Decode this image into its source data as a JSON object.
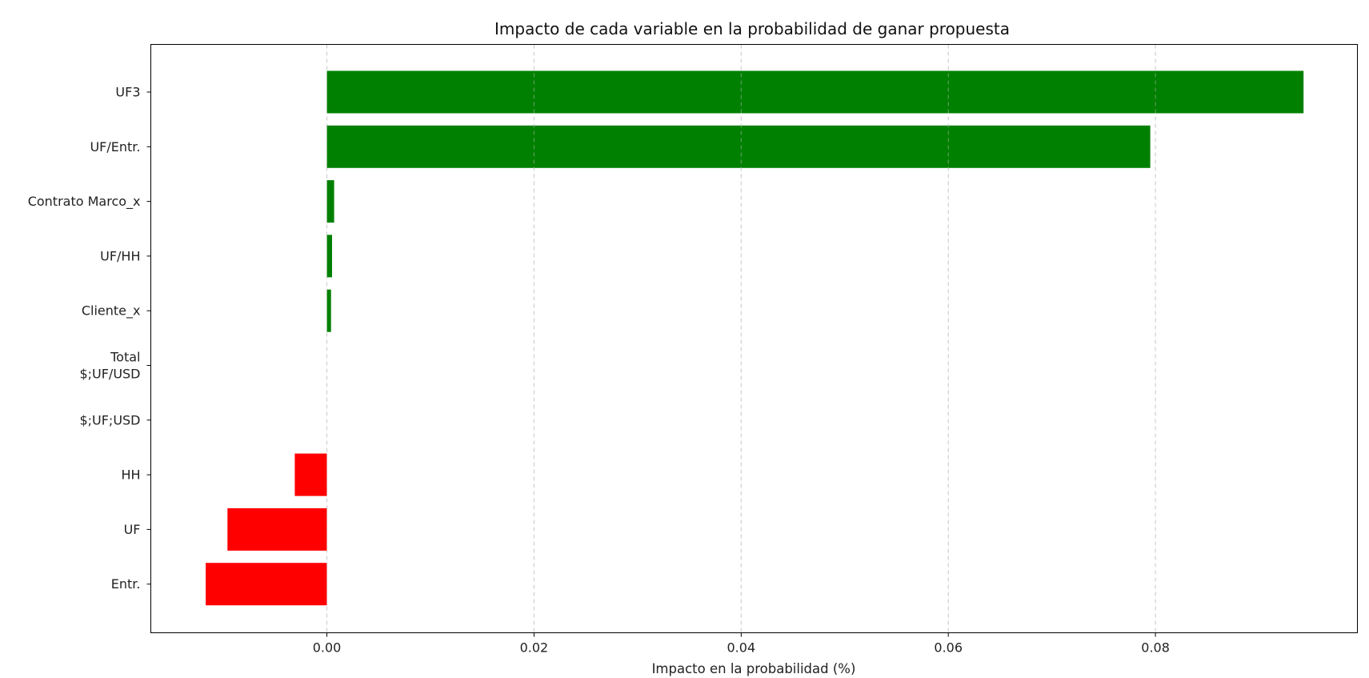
{
  "chart_data": {
    "type": "bar",
    "orientation": "horizontal",
    "title": "Impacto de cada variable en la probabilidad de ganar propuesta",
    "xlabel": "Impacto en la probabilidad (%)",
    "ylabel": "",
    "xlim": [
      -0.017,
      0.0995
    ],
    "xticks": [
      0.0,
      0.02,
      0.04,
      0.06,
      0.08
    ],
    "xtick_labels": [
      "0.00",
      "0.02",
      "0.04",
      "0.06",
      "0.08"
    ],
    "grid": "x-dashed",
    "legend": "none",
    "categories": [
      [
        "UF3"
      ],
      [
        "UF/Entr."
      ],
      [
        "Contrato Marco_x"
      ],
      [
        "UF/HH"
      ],
      [
        "Cliente_x"
      ],
      [
        "Total",
        "$;UF/USD"
      ],
      [
        "$;UF;USD"
      ],
      [
        "HH"
      ],
      [
        "UF"
      ],
      [
        "Entr."
      ]
    ],
    "values": [
      0.0943,
      0.0795,
      0.0007,
      0.0005,
      0.0004,
      0.0,
      0.0,
      -0.0031,
      -0.0096,
      -0.0117
    ],
    "colors": {
      "positive": "#008000",
      "negative": "#ff0000"
    }
  }
}
